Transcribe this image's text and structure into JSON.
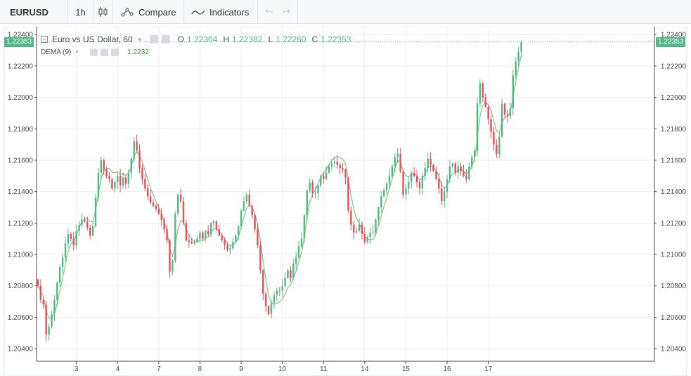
{
  "toolbar": {
    "symbol": "EURUSD",
    "interval": "1h",
    "chart_type_icon": "candles-icon",
    "compare_label": "Compare",
    "indicators_label": "Indicators",
    "undo_icon": "undo-icon",
    "redo_icon": "redo-icon"
  },
  "legend": {
    "title": "Euro vs US Dollar, 60",
    "o_label": "O",
    "o_value": "1.22304",
    "h_label": "H",
    "h_value": "1.22382",
    "l_label": "L",
    "l_value": "1.22260",
    "c_label": "C",
    "c_value": "1.22353",
    "indicator_name": "DEMA (9)",
    "indicator_value": "1.2232"
  },
  "last_price": "1.22353",
  "colors": {
    "up": "#53b987",
    "down": "#eb4d5c",
    "dema_line": "#8cc98e",
    "grid": "#eceef2",
    "axis": "#4a4a4a"
  },
  "chart_data": {
    "type": "candlestick",
    "title": "Euro vs US Dollar, 60",
    "x_tick_labels": [
      "3",
      "4",
      "7",
      "8",
      "9",
      "10",
      "11",
      "14",
      "15",
      "16",
      "17"
    ],
    "y_tick_labels": [
      "1.22400",
      "1.22200",
      "1.22000",
      "1.21800",
      "1.21600",
      "1.21400",
      "1.21200",
      "1.21000",
      "1.20800",
      "1.20600",
      "1.20400"
    ],
    "y_ticks": [
      1.224,
      1.222,
      1.22,
      1.218,
      1.216,
      1.214,
      1.212,
      1.21,
      1.208,
      1.206,
      1.204
    ],
    "ylim": [
      1.2032,
      1.2245
    ],
    "x_range": [
      0,
      225
    ],
    "x_tick_positions": [
      14,
      29,
      44,
      59,
      74,
      89,
      104,
      119,
      134,
      149,
      164
    ],
    "grid": true,
    "last_price": 1.22353,
    "close": [
      1.208,
      1.2071,
      1.2068,
      1.2049,
      1.2054,
      1.2062,
      1.2071,
      1.2082,
      1.2092,
      1.2098,
      1.2107,
      1.2113,
      1.211,
      1.2106,
      1.2115,
      1.2119,
      1.2122,
      1.2121,
      1.2117,
      1.2112,
      1.2118,
      1.2136,
      1.2152,
      1.216,
      1.2154,
      1.215,
      1.2148,
      1.2142,
      1.2146,
      1.215,
      1.2144,
      1.2149,
      1.2145,
      1.2152,
      1.2161,
      1.2172,
      1.2166,
      1.2155,
      1.2148,
      1.2142,
      1.2137,
      1.2133,
      1.2131,
      1.2129,
      1.2126,
      1.2122,
      1.2116,
      1.2109,
      1.2089,
      1.2096,
      1.2126,
      1.2138,
      1.2134,
      1.212,
      1.2109,
      1.2108,
      1.2107,
      1.2108,
      1.211,
      1.2114,
      1.211,
      1.2115,
      1.2113,
      1.212,
      1.2121,
      1.2116,
      1.2112,
      1.2109,
      1.2106,
      1.2103,
      1.2104,
      1.2108,
      1.2112,
      1.2118,
      1.2128,
      1.2134,
      1.2138,
      1.2131,
      1.2125,
      1.2116,
      1.2106,
      1.209,
      1.2075,
      1.2067,
      1.2062,
      1.2069,
      1.2074,
      1.2077,
      1.2077,
      1.208,
      1.2085,
      1.209,
      1.2085,
      1.2094,
      1.2098,
      1.2105,
      1.211,
      1.2125,
      1.2141,
      1.2146,
      1.2139,
      1.2139,
      1.2144,
      1.215,
      1.2148,
      1.2152,
      1.2156,
      1.2158,
      1.2159,
      1.2157,
      1.2155,
      1.2154,
      1.2149,
      1.2128,
      1.2119,
      1.2114,
      1.2115,
      1.2119,
      1.2113,
      1.2108,
      1.2111,
      1.2114,
      1.2114,
      1.2122,
      1.213,
      1.2137,
      1.2141,
      1.2145,
      1.215,
      1.2156,
      1.2162,
      1.2164,
      1.2153,
      1.2138,
      1.2142,
      1.2146,
      1.2152,
      1.215,
      1.2146,
      1.2142,
      1.215,
      1.2155,
      1.2161,
      1.2157,
      1.2153,
      1.2148,
      1.2142,
      1.2134,
      1.214,
      1.2148,
      1.2156,
      1.2158,
      1.2152,
      1.2156,
      1.2153,
      1.215,
      1.2148,
      1.2156,
      1.2162,
      1.2166,
      1.2196,
      1.2209,
      1.22,
      1.2194,
      1.2186,
      1.2178,
      1.217,
      1.2164,
      1.2175,
      1.2196,
      1.2189,
      1.2188,
      1.2193,
      1.2214,
      1.2223,
      1.2229,
      1.2235
    ],
    "series": [
      {
        "name": "EURUSD",
        "kind": "candles"
      },
      {
        "name": "DEMA (9)",
        "kind": "line"
      }
    ]
  }
}
